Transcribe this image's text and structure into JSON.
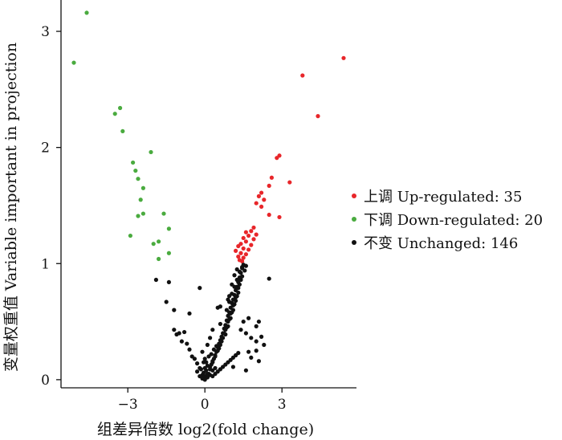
{
  "chart_data": {
    "type": "scatter",
    "title": "",
    "xlabel": "组差异倍数 log2(fold change)",
    "ylabel": "变量权重值 Variable important in projection",
    "xlim": [
      -5.6,
      5.9
    ],
    "ylim": [
      -0.07,
      3.27
    ],
    "x_ticks": [
      {
        "value": -3,
        "label": "−3"
      },
      {
        "value": 0,
        "label": "0"
      },
      {
        "value": 3,
        "label": "3"
      }
    ],
    "y_ticks": [
      {
        "value": 0,
        "label": "0"
      },
      {
        "value": 1,
        "label": "1"
      },
      {
        "value": 2,
        "label": "2"
      },
      {
        "value": 3,
        "label": "3"
      }
    ],
    "grid": false,
    "legend_position": "right",
    "series": [
      {
        "name": "上调 Up-regulated: 35",
        "color": "#e8262a",
        "points": [
          [
            5.4,
            2.77
          ],
          [
            3.8,
            2.62
          ],
          [
            4.4,
            2.27
          ],
          [
            2.9,
            1.93
          ],
          [
            2.8,
            1.91
          ],
          [
            2.6,
            1.74
          ],
          [
            2.5,
            1.67
          ],
          [
            3.3,
            1.7
          ],
          [
            2.2,
            1.61
          ],
          [
            2.1,
            1.58
          ],
          [
            2.3,
            1.55
          ],
          [
            2.0,
            1.52
          ],
          [
            2.2,
            1.49
          ],
          [
            2.9,
            1.4
          ],
          [
            2.5,
            1.42
          ],
          [
            1.9,
            1.31
          ],
          [
            1.8,
            1.28
          ],
          [
            1.6,
            1.27
          ],
          [
            2.0,
            1.25
          ],
          [
            1.7,
            1.24
          ],
          [
            1.5,
            1.22
          ],
          [
            1.9,
            1.21
          ],
          [
            1.6,
            1.19
          ],
          [
            1.4,
            1.17
          ],
          [
            1.8,
            1.16
          ],
          [
            1.3,
            1.15
          ],
          [
            1.5,
            1.13
          ],
          [
            1.7,
            1.12
          ],
          [
            1.2,
            1.11
          ],
          [
            1.4,
            1.09
          ],
          [
            1.6,
            1.08
          ],
          [
            1.3,
            1.06
          ],
          [
            1.5,
            1.05
          ],
          [
            1.35,
            1.03
          ],
          [
            1.45,
            1.02
          ]
        ]
      },
      {
        "name": "下调 Down-regulated: 20",
        "color": "#4aab3f",
        "points": [
          [
            -4.6,
            3.16
          ],
          [
            -5.1,
            2.73
          ],
          [
            -3.3,
            2.34
          ],
          [
            -3.5,
            2.29
          ],
          [
            -3.2,
            2.14
          ],
          [
            -2.1,
            1.96
          ],
          [
            -2.8,
            1.87
          ],
          [
            -2.7,
            1.8
          ],
          [
            -2.6,
            1.73
          ],
          [
            -2.4,
            1.65
          ],
          [
            -2.5,
            1.55
          ],
          [
            -2.4,
            1.43
          ],
          [
            -1.6,
            1.43
          ],
          [
            -2.6,
            1.41
          ],
          [
            -1.4,
            1.3
          ],
          [
            -2.9,
            1.24
          ],
          [
            -1.8,
            1.19
          ],
          [
            -2.0,
            1.17
          ],
          [
            -1.4,
            1.09
          ],
          [
            -1.8,
            1.04
          ]
        ]
      },
      {
        "name": "不变 Unchanged: 146",
        "color": "#111111",
        "points": [
          [
            -1.9,
            0.86
          ],
          [
            -1.4,
            0.84
          ],
          [
            -0.2,
            0.79
          ],
          [
            -1.5,
            0.67
          ],
          [
            -1.2,
            0.6
          ],
          [
            -0.6,
            0.57
          ],
          [
            -1.2,
            0.43
          ],
          [
            -0.8,
            0.41
          ],
          [
            -1.0,
            0.4
          ],
          [
            -1.1,
            0.39
          ],
          [
            -0.9,
            0.33
          ],
          [
            -0.7,
            0.31
          ],
          [
            -0.6,
            0.26
          ],
          [
            -0.5,
            0.2
          ],
          [
            -0.4,
            0.18
          ],
          [
            -0.3,
            0.14
          ],
          [
            -0.2,
            0.1
          ],
          [
            -0.3,
            0.07
          ],
          [
            -0.1,
            0.04
          ],
          [
            0.0,
            0.03
          ],
          [
            0.1,
            0.02
          ],
          [
            -0.05,
            0.06
          ],
          [
            0.05,
            0.08
          ],
          [
            0.15,
            0.05
          ],
          [
            -0.15,
            0.09
          ],
          [
            0.2,
            0.11
          ],
          [
            0.25,
            0.13
          ],
          [
            0.3,
            0.15
          ],
          [
            0.35,
            0.18
          ],
          [
            0.4,
            0.21
          ],
          [
            0.45,
            0.24
          ],
          [
            0.5,
            0.28
          ],
          [
            0.55,
            0.31
          ],
          [
            0.6,
            0.34
          ],
          [
            0.65,
            0.37
          ],
          [
            0.7,
            0.4
          ],
          [
            0.75,
            0.44
          ],
          [
            0.8,
            0.47
          ],
          [
            0.85,
            0.51
          ],
          [
            0.9,
            0.55
          ],
          [
            0.95,
            0.58
          ],
          [
            1.0,
            0.62
          ],
          [
            1.05,
            0.66
          ],
          [
            1.1,
            0.69
          ],
          [
            1.15,
            0.73
          ],
          [
            1.2,
            0.77
          ],
          [
            1.25,
            0.8
          ],
          [
            1.3,
            0.84
          ],
          [
            1.35,
            0.88
          ],
          [
            1.4,
            0.92
          ],
          [
            1.45,
            0.96
          ],
          [
            1.5,
            0.99
          ],
          [
            0.7,
            0.36
          ],
          [
            0.8,
            0.43
          ],
          [
            0.9,
            0.5
          ],
          [
            1.0,
            0.57
          ],
          [
            1.1,
            0.64
          ],
          [
            1.2,
            0.71
          ],
          [
            1.3,
            0.79
          ],
          [
            1.4,
            0.86
          ],
          [
            1.3,
            0.75
          ],
          [
            1.2,
            0.68
          ],
          [
            1.1,
            0.6
          ],
          [
            1.0,
            0.53
          ],
          [
            0.9,
            0.46
          ],
          [
            0.8,
            0.39
          ],
          [
            0.6,
            0.3
          ],
          [
            0.5,
            0.25
          ],
          [
            0.4,
            0.2
          ],
          [
            0.3,
            0.16
          ],
          [
            0.55,
            0.27
          ],
          [
            0.65,
            0.33
          ],
          [
            0.75,
            0.4
          ],
          [
            0.85,
            0.45
          ],
          [
            0.95,
            0.52
          ],
          [
            1.05,
            0.58
          ],
          [
            1.15,
            0.65
          ],
          [
            1.25,
            0.72
          ],
          [
            1.35,
            0.82
          ],
          [
            1.45,
            0.89
          ],
          [
            1.15,
            0.8
          ],
          [
            1.05,
            0.74
          ],
          [
            0.95,
            0.67
          ],
          [
            1.25,
            0.86
          ],
          [
            1.35,
            0.93
          ],
          [
            1.45,
            0.97
          ],
          [
            1.55,
            0.94
          ],
          [
            1.6,
            0.98
          ],
          [
            1.25,
            0.95
          ],
          [
            1.15,
            0.9
          ],
          [
            0.5,
            0.62
          ],
          [
            0.6,
            0.63
          ],
          [
            0.3,
            0.43
          ],
          [
            0.2,
            0.36
          ],
          [
            0.1,
            0.3
          ],
          [
            -0.1,
            0.24
          ],
          [
            0.0,
            0.18
          ],
          [
            0.05,
            0.15
          ],
          [
            0.15,
            0.2
          ],
          [
            0.25,
            0.22
          ],
          [
            0.35,
            0.26
          ],
          [
            0.45,
            0.29
          ],
          [
            0.2,
            0.09
          ],
          [
            0.3,
            0.08
          ],
          [
            0.4,
            0.1
          ],
          [
            0.1,
            0.12
          ],
          [
            -0.05,
            0.15
          ],
          [
            0.0,
            0.1
          ],
          [
            0.1,
            0.05
          ],
          [
            0.2,
            0.04
          ],
          [
            -0.2,
            0.03
          ],
          [
            -0.1,
            0.01
          ],
          [
            0.0,
            0.0
          ],
          [
            0.3,
            0.03
          ],
          [
            0.4,
            0.05
          ],
          [
            0.5,
            0.07
          ],
          [
            0.6,
            0.09
          ],
          [
            0.7,
            0.11
          ],
          [
            0.8,
            0.13
          ],
          [
            0.9,
            0.15
          ],
          [
            1.0,
            0.17
          ],
          [
            1.1,
            0.19
          ],
          [
            1.2,
            0.21
          ],
          [
            1.3,
            0.23
          ],
          [
            1.1,
            0.11
          ],
          [
            1.6,
            0.08
          ],
          [
            2.1,
            0.16
          ],
          [
            1.8,
            0.19
          ],
          [
            1.7,
            0.24
          ],
          [
            2.0,
            0.25
          ],
          [
            2.2,
            0.37
          ],
          [
            2.1,
            0.5
          ],
          [
            2.0,
            0.46
          ],
          [
            2.5,
            0.87
          ],
          [
            1.7,
            0.53
          ],
          [
            1.5,
            0.5
          ],
          [
            0.9,
            0.69
          ],
          [
            0.95,
            0.72
          ],
          [
            0.6,
            0.48
          ],
          [
            1.4,
            0.43
          ],
          [
            1.6,
            0.4
          ],
          [
            1.8,
            0.36
          ],
          [
            2.0,
            0.33
          ],
          [
            2.3,
            0.3
          ],
          [
            0.85,
            0.6
          ],
          [
            1.05,
            0.82
          ]
        ]
      }
    ]
  }
}
